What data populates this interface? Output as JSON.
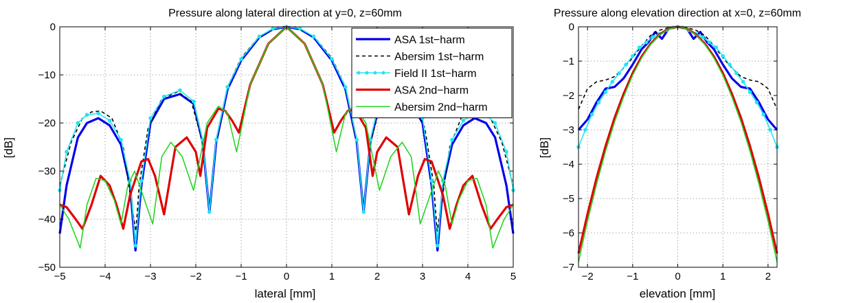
{
  "chart_data": [
    {
      "type": "line",
      "title": "Pressure along lateral direction at y=0, z=60mm",
      "xlabel": "lateral [mm]",
      "ylabel": "[dB]",
      "xlim": [
        -5,
        5
      ],
      "ylim": [
        -50,
        0
      ],
      "xticks": [
        "−5",
        "−4",
        "−3",
        "−2",
        "−1",
        "0",
        "1",
        "2",
        "3",
        "4",
        "5"
      ],
      "yticks": [
        "0",
        "−10",
        "−20",
        "−30",
        "−40",
        "−50"
      ],
      "grid": true,
      "legend_position": "top-right",
      "series": [
        {
          "name": "ASA 1st−harm",
          "color": "#0000ee",
          "style": "thick",
          "x": [
            -5,
            -4.85,
            -4.6,
            -4.4,
            -4.15,
            -3.9,
            -3.65,
            -3.45,
            -3.33,
            -3.2,
            -3.0,
            -2.7,
            -2.35,
            -2.05,
            -1.85,
            -1.7,
            -1.55,
            -1.3,
            -1.0,
            -0.6,
            -0.3,
            0,
            0.3,
            0.6,
            1.0,
            1.3,
            1.55,
            1.7,
            1.85,
            2.05,
            2.35,
            2.7,
            3.0,
            3.2,
            3.33,
            3.45,
            3.65,
            3.9,
            4.15,
            4.4,
            4.6,
            4.85,
            5
          ],
          "y": [
            -43,
            -33,
            -23,
            -20,
            -19,
            -20.5,
            -24.5,
            -33,
            -46.5,
            -33,
            -20,
            -15,
            -14,
            -16,
            -24,
            -38.5,
            -24,
            -13,
            -7,
            -2.2,
            -0.5,
            0,
            -0.5,
            -2.2,
            -7,
            -13,
            -24,
            -38.5,
            -24,
            -16,
            -14,
            -15,
            -20,
            -33,
            -46.5,
            -33,
            -24.5,
            -20.5,
            -19,
            -20,
            -23,
            -33,
            -43
          ]
        },
        {
          "name": "Abersim 1st−harm",
          "color": "#000000",
          "style": "dashed",
          "x": [
            -5,
            -4.75,
            -4.5,
            -4.3,
            -4.1,
            -3.85,
            -3.6,
            -3.4,
            -3.32,
            -3.25,
            -3.05,
            -2.75,
            -2.4,
            -2.1,
            -1.85,
            -1.7,
            -1.55,
            -1.3,
            -1.0,
            -0.6,
            -0.3,
            0,
            0.3,
            0.6,
            1.0,
            1.3,
            1.55,
            1.7,
            1.85,
            2.1,
            2.4,
            2.75,
            3.05,
            3.25,
            3.32,
            3.4,
            3.6,
            3.85,
            4.1,
            4.3,
            4.5,
            4.75,
            5
          ],
          "y": [
            -33,
            -24,
            -19,
            -17.7,
            -17.5,
            -19,
            -25,
            -38,
            -42.5,
            -33,
            -21,
            -15,
            -13.5,
            -15.5,
            -24,
            -38,
            -24,
            -12.5,
            -6.5,
            -2,
            -0.5,
            0,
            -0.5,
            -2,
            -6.5,
            -12.5,
            -24,
            -38,
            -24,
            -15.5,
            -13.5,
            -15,
            -21,
            -33,
            -42.5,
            -38,
            -25,
            -19,
            -17.5,
            -17.7,
            -19,
            -24,
            -33
          ]
        },
        {
          "name": "Field II 1st−harm",
          "color": "#22e5f0",
          "style": "markers",
          "x": [
            -5,
            -4.85,
            -4.6,
            -4.4,
            -4.15,
            -3.9,
            -3.65,
            -3.45,
            -3.33,
            -3.2,
            -3.0,
            -2.7,
            -2.35,
            -2.05,
            -1.85,
            -1.7,
            -1.55,
            -1.3,
            -1.0,
            -0.6,
            -0.3,
            0,
            0.3,
            0.6,
            1.0,
            1.3,
            1.55,
            1.7,
            1.85,
            2.05,
            2.35,
            2.7,
            3.0,
            3.2,
            3.33,
            3.45,
            3.65,
            3.9,
            4.15,
            4.4,
            4.6,
            4.85,
            5
          ],
          "y": [
            -34,
            -26,
            -20,
            -18.3,
            -18,
            -19.5,
            -23.5,
            -32,
            -45.5,
            -32,
            -19,
            -14.5,
            -13.2,
            -15.5,
            -23.5,
            -38.5,
            -23.5,
            -12.5,
            -6.7,
            -2,
            -0.4,
            0,
            -0.4,
            -2,
            -6.7,
            -12.5,
            -23.5,
            -38.5,
            -23.5,
            -15.5,
            -13.2,
            -14.5,
            -19,
            -32,
            -45.5,
            -32,
            -23.5,
            -19.5,
            -18,
            -18.3,
            -20,
            -26,
            -34
          ]
        },
        {
          "name": "ASA 2nd−harm",
          "color": "#e00000",
          "style": "thick",
          "x": [
            -5,
            -4.85,
            -4.65,
            -4.5,
            -4.3,
            -4.1,
            -3.9,
            -3.75,
            -3.6,
            -3.45,
            -3.2,
            -3.05,
            -2.9,
            -2.7,
            -2.45,
            -2.2,
            -2.0,
            -1.9,
            -1.75,
            -1.5,
            -1.35,
            -1.2,
            -1.05,
            -0.8,
            -0.4,
            0,
            0.4,
            0.8,
            1.05,
            1.2,
            1.35,
            1.5,
            1.75,
            1.9,
            2.0,
            2.2,
            2.45,
            2.7,
            2.9,
            3.05,
            3.2,
            3.45,
            3.6,
            3.75,
            3.9,
            4.1,
            4.3,
            4.5,
            4.65,
            4.85,
            5
          ],
          "y": [
            -37,
            -37.5,
            -40,
            -42,
            -37,
            -31,
            -33,
            -37,
            -42,
            -35,
            -28,
            -27.5,
            -31,
            -39,
            -25,
            -23,
            -26,
            -31,
            -21,
            -17,
            -17.5,
            -19.5,
            -22,
            -12,
            -3.5,
            0,
            -3.5,
            -12,
            -22,
            -19.5,
            -17.5,
            -17,
            -21,
            -31,
            -26,
            -23,
            -25,
            -39,
            -31,
            -27.5,
            -28,
            -35,
            -42,
            -37,
            -33,
            -31,
            -37,
            -42,
            -40,
            -37.5,
            -37
          ]
        },
        {
          "name": "Abersim 2nd−harm",
          "color": "#22d522",
          "style": "solid",
          "x": [
            -5,
            -4.8,
            -4.55,
            -4.4,
            -4.2,
            -4.0,
            -3.8,
            -3.65,
            -3.5,
            -3.35,
            -3.15,
            -2.95,
            -2.75,
            -2.55,
            -2.3,
            -2.05,
            -1.9,
            -1.75,
            -1.5,
            -1.3,
            -1.1,
            -0.8,
            -0.4,
            0,
            0.4,
            0.8,
            1.1,
            1.3,
            1.5,
            1.75,
            1.9,
            2.05,
            2.3,
            2.55,
            2.75,
            2.95,
            3.15,
            3.35,
            3.5,
            3.65,
            3.8,
            4.0,
            4.2,
            4.4,
            4.55,
            4.8,
            5
          ],
          "y": [
            -37,
            -40,
            -46,
            -37,
            -31.5,
            -32,
            -36,
            -41,
            -33,
            -30,
            -35.5,
            -41,
            -27,
            -24,
            -27,
            -34,
            -27,
            -20,
            -16.5,
            -18,
            -26,
            -12,
            -3.5,
            0,
            -3.5,
            -12,
            -26,
            -18,
            -16.5,
            -20,
            -27,
            -34,
            -27,
            -24,
            -27,
            -41,
            -35.5,
            -30,
            -33,
            -41,
            -36,
            -32,
            -31.5,
            -37,
            -46,
            -40,
            -37
          ]
        }
      ]
    },
    {
      "type": "line",
      "title": "Pressure along elevation direction at x=0, z=60mm",
      "xlabel": "elevation [mm]",
      "ylabel": "[dB]",
      "xlim": [
        -2.2,
        2.2
      ],
      "ylim": [
        -7,
        0
      ],
      "xticks": [
        "−2",
        "−1",
        "0",
        "1",
        "2"
      ],
      "yticks": [
        "0",
        "−1",
        "−2",
        "−3",
        "−4",
        "−5",
        "−6",
        "−7"
      ],
      "grid": true,
      "series": [
        {
          "name": "ASA 1st−harm",
          "color": "#0000ee",
          "style": "thick",
          "x": [
            -2.2,
            -2.0,
            -1.8,
            -1.6,
            -1.4,
            -1.2,
            -1.0,
            -0.8,
            -0.65,
            -0.5,
            -0.35,
            -0.2,
            0,
            0.2,
            0.35,
            0.5,
            0.65,
            0.8,
            1.0,
            1.2,
            1.4,
            1.6,
            1.8,
            2.0,
            2.2
          ],
          "y": [
            -3.0,
            -2.7,
            -2.2,
            -1.8,
            -1.75,
            -1.5,
            -1.1,
            -0.65,
            -0.45,
            -0.15,
            -0.35,
            -0.05,
            0,
            -0.05,
            -0.35,
            -0.15,
            -0.45,
            -0.65,
            -1.1,
            -1.5,
            -1.75,
            -1.8,
            -2.2,
            -2.7,
            -3.0
          ]
        },
        {
          "name": "Abersim 1st−harm",
          "color": "#000000",
          "style": "dashed",
          "x": [
            -2.2,
            -2.0,
            -1.8,
            -1.6,
            -1.4,
            -1.2,
            -1.0,
            -0.8,
            -0.6,
            -0.4,
            -0.2,
            0,
            0.2,
            0.4,
            0.6,
            0.8,
            1.0,
            1.2,
            1.4,
            1.6,
            1.8,
            2.0,
            2.2
          ],
          "y": [
            -2.4,
            -1.8,
            -1.6,
            -1.55,
            -1.45,
            -1.2,
            -0.9,
            -0.55,
            -0.25,
            -0.1,
            -0.02,
            0,
            -0.02,
            -0.1,
            -0.25,
            -0.55,
            -0.9,
            -1.2,
            -1.45,
            -1.55,
            -1.6,
            -1.8,
            -2.4
          ]
        },
        {
          "name": "Field II 1st−harm",
          "color": "#22e5f0",
          "style": "markers",
          "x": [
            -2.2,
            -2.05,
            -1.9,
            -1.75,
            -1.6,
            -1.45,
            -1.3,
            -1.15,
            -1.0,
            -0.85,
            -0.7,
            -0.55,
            -0.4,
            -0.25,
            -0.1,
            0,
            0.1,
            0.25,
            0.4,
            0.55,
            0.7,
            0.85,
            1.0,
            1.15,
            1.3,
            1.45,
            1.6,
            1.75,
            1.9,
            2.05,
            2.2
          ],
          "y": [
            -3.5,
            -3.0,
            -2.55,
            -2.2,
            -1.9,
            -1.6,
            -1.35,
            -1.1,
            -0.85,
            -0.6,
            -0.45,
            -0.3,
            -0.2,
            -0.1,
            -0.02,
            0,
            -0.02,
            -0.1,
            -0.2,
            -0.3,
            -0.45,
            -0.6,
            -0.85,
            -1.1,
            -1.35,
            -1.6,
            -1.9,
            -2.2,
            -2.55,
            -3.0,
            -3.5
          ]
        },
        {
          "name": "ASA 2nd−harm",
          "color": "#e00000",
          "style": "thick",
          "x": [
            -2.2,
            -2.0,
            -1.8,
            -1.6,
            -1.4,
            -1.2,
            -1.0,
            -0.8,
            -0.6,
            -0.4,
            -0.2,
            0,
            0.2,
            0.4,
            0.6,
            0.8,
            1.0,
            1.2,
            1.4,
            1.6,
            1.8,
            2.0,
            2.2
          ],
          "y": [
            -6.6,
            -5.45,
            -4.4,
            -3.47,
            -2.65,
            -1.95,
            -1.35,
            -0.86,
            -0.49,
            -0.22,
            -0.05,
            0,
            -0.05,
            -0.22,
            -0.49,
            -0.86,
            -1.35,
            -1.95,
            -2.65,
            -3.47,
            -4.4,
            -5.45,
            -6.6
          ]
        },
        {
          "name": "Abersim 2nd−harm",
          "color": "#22d522",
          "style": "solid",
          "x": [
            -2.2,
            -2.0,
            -1.8,
            -1.6,
            -1.4,
            -1.2,
            -1.0,
            -0.8,
            -0.6,
            -0.4,
            -0.2,
            0,
            0.2,
            0.4,
            0.6,
            0.8,
            1.0,
            1.2,
            1.4,
            1.6,
            1.8,
            2.0,
            2.2
          ],
          "y": [
            -6.85,
            -5.66,
            -4.58,
            -3.62,
            -2.77,
            -2.04,
            -1.41,
            -0.9,
            -0.51,
            -0.23,
            -0.06,
            0,
            -0.06,
            -0.23,
            -0.51,
            -0.9,
            -1.41,
            -2.04,
            -2.77,
            -3.62,
            -4.58,
            -5.66,
            -6.85
          ]
        }
      ]
    }
  ]
}
